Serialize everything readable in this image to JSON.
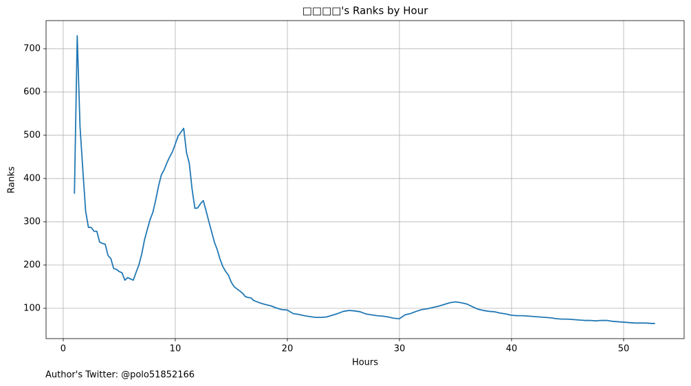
{
  "chart_data": {
    "type": "line",
    "title": "□□□□'s Ranks by Hour",
    "xlabel": "Hours",
    "ylabel": "Ranks",
    "footnote": "Author's Twitter: @polo51852166",
    "xlim": [
      -1.53,
      55.4
    ],
    "ylim": [
      30,
      765
    ],
    "xticks": [
      0,
      10,
      20,
      30,
      40,
      50
    ],
    "yticks": [
      100,
      200,
      300,
      400,
      500,
      600,
      700
    ],
    "grid": true,
    "x": [
      1.0,
      1.25,
      1.5,
      1.75,
      2.0,
      2.25,
      2.5,
      2.75,
      3.0,
      3.25,
      3.5,
      3.75,
      4.0,
      4.25,
      4.5,
      4.75,
      5.0,
      5.25,
      5.5,
      5.75,
      6.0,
      6.25,
      6.5,
      6.75,
      7.0,
      7.25,
      7.5,
      7.75,
      8.0,
      8.25,
      8.5,
      8.75,
      9.0,
      9.25,
      9.5,
      9.75,
      10.0,
      10.25,
      10.5,
      10.75,
      11.0,
      11.25,
      11.5,
      11.75,
      12.0,
      12.25,
      12.5,
      12.75,
      13.0,
      13.25,
      13.5,
      13.75,
      14.0,
      14.25,
      14.5,
      14.75,
      15.0,
      15.25,
      15.5,
      15.75,
      16.0,
      16.25,
      16.5,
      16.75,
      17.0,
      17.5,
      18.0,
      18.5,
      19.0,
      19.5,
      20.0,
      20.5,
      21.0,
      21.5,
      22.0,
      22.5,
      23.0,
      23.5,
      24.0,
      24.5,
      25.0,
      25.5,
      26.0,
      26.5,
      27.0,
      27.5,
      28.0,
      28.5,
      29.0,
      29.5,
      30.0,
      30.5,
      31.0,
      31.5,
      32.0,
      32.5,
      33.0,
      33.5,
      34.0,
      34.5,
      35.0,
      35.5,
      36.0,
      36.5,
      37.0,
      37.5,
      38.0,
      38.5,
      39.0,
      39.5,
      40.0,
      40.5,
      41.0,
      41.5,
      42.0,
      42.5,
      43.0,
      43.5,
      44.0,
      44.5,
      45.0,
      45.5,
      46.0,
      46.5,
      47.0,
      47.5,
      48.0,
      48.5,
      49.0,
      49.5,
      50.0,
      50.5,
      51.0,
      51.5,
      52.0,
      52.5,
      52.8
    ],
    "series": [
      {
        "name": "Ranks",
        "color": "#1f77b4",
        "values": [
          365,
          730,
          520,
          420,
          325,
          287,
          287,
          278,
          278,
          253,
          250,
          248,
          222,
          215,
          192,
          190,
          185,
          182,
          165,
          171,
          168,
          165,
          183,
          200,
          225,
          258,
          282,
          305,
          322,
          350,
          382,
          408,
          420,
          436,
          450,
          462,
          480,
          498,
          507,
          516,
          460,
          435,
          375,
          331,
          332,
          342,
          349,
          325,
          300,
          276,
          252,
          235,
          213,
          196,
          185,
          176,
          160,
          150,
          145,
          140,
          135,
          127,
          125,
          124,
          118,
          113,
          109,
          106,
          101,
          97,
          96,
          88,
          86,
          83,
          81,
          79,
          79,
          80,
          84,
          88,
          93,
          95,
          94,
          92,
          87,
          85,
          83,
          82,
          80,
          77,
          76,
          85,
          88,
          93,
          97,
          99,
          102,
          105,
          109,
          113,
          115,
          113,
          110,
          104,
          98,
          95,
          93,
          92,
          89,
          87,
          84,
          83,
          83,
          82,
          81,
          80,
          79,
          78,
          76,
          75,
          75,
          74,
          73,
          72,
          72,
          71,
          72,
          72,
          70,
          69,
          68,
          67,
          66,
          66,
          66,
          65,
          65
        ]
      }
    ]
  }
}
